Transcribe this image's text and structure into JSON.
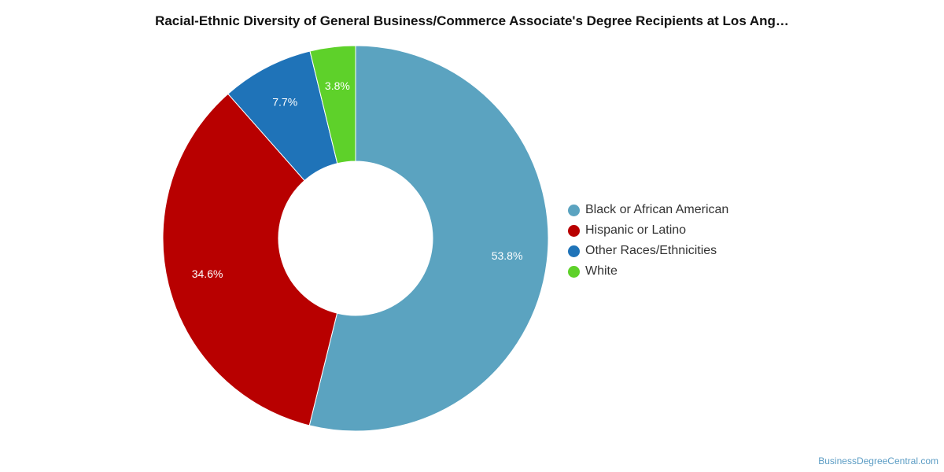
{
  "chart_data": {
    "type": "pie",
    "title": "Racial-Ethnic Diversity of General Business/Commerce Associate's Degree Recipients at Los Ang…",
    "donut": true,
    "legend_position": "right",
    "slices": [
      {
        "label": "Black or African American",
        "value": 53.8,
        "value_label": "53.8%",
        "color": "#5ba3c0"
      },
      {
        "label": "Hispanic or Latino",
        "value": 34.6,
        "value_label": "34.6%",
        "color": "#b80000"
      },
      {
        "label": "Other Races/Ethnicities",
        "value": 7.7,
        "value_label": "7.7%",
        "color": "#1f73b8"
      },
      {
        "label": "White",
        "value": 3.8,
        "value_label": "3.8%",
        "color": "#5ed12a"
      }
    ]
  },
  "footer": {
    "credit": "BusinessDegreeCentral.com"
  }
}
